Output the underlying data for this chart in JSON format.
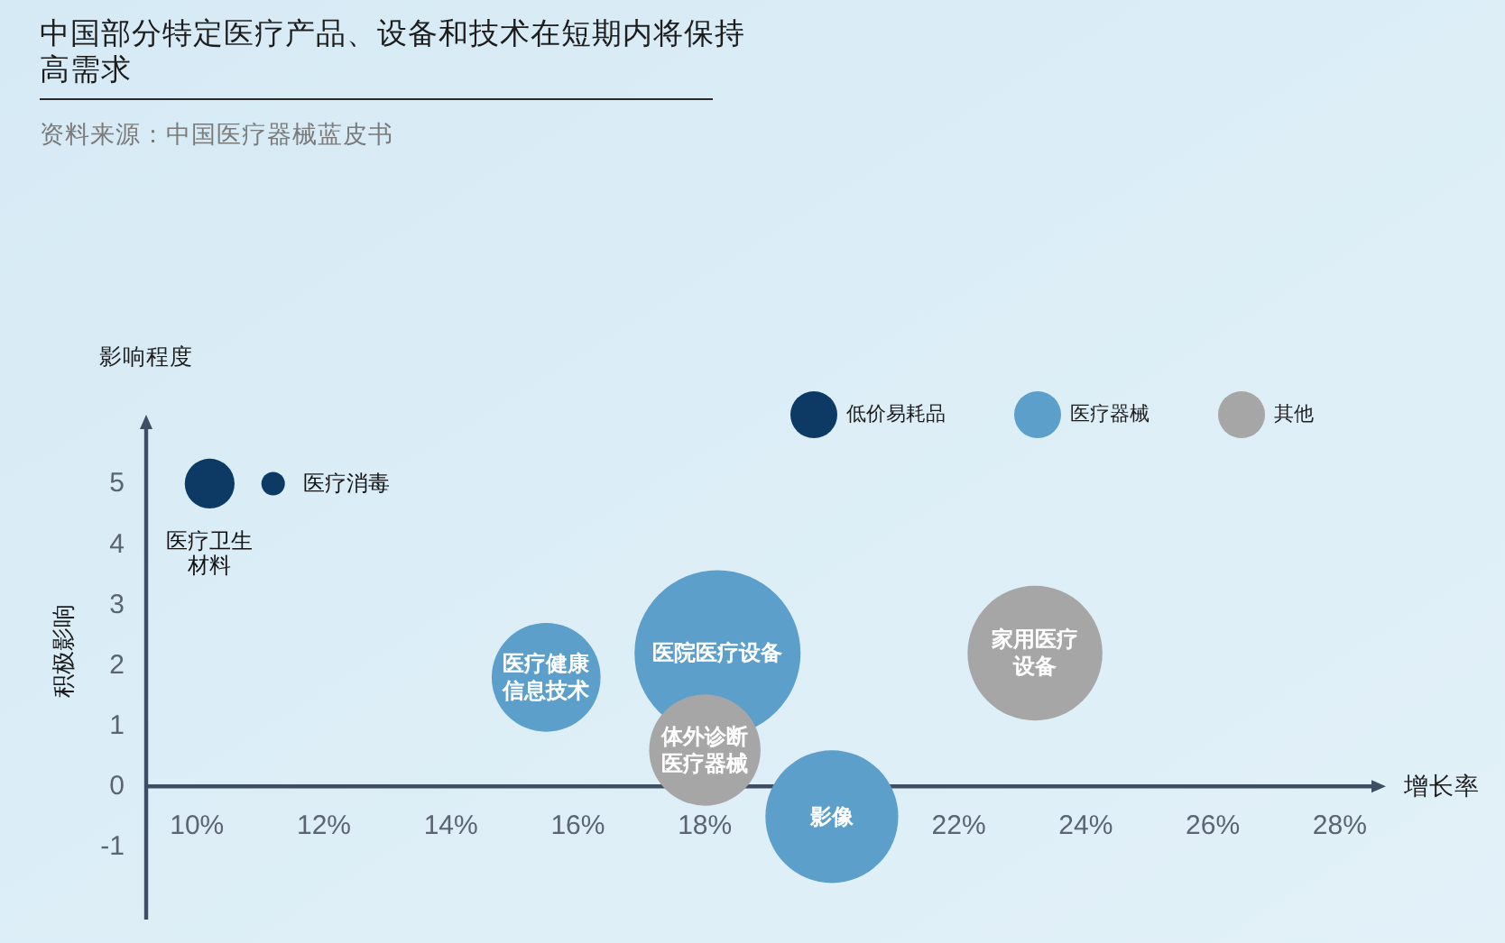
{
  "chart_data": {
    "type": "bubble",
    "title": "中国部分特定医疗产品、设备和技术在短期内将保持高需求",
    "xlabel": "增长率",
    "ylabel": "影响程度",
    "annotations": [
      {
        "text": "医疗卫生材料",
        "x": 10.2,
        "y": 5
      },
      {
        "text": "医疗消毒",
        "x": 11.2,
        "y": 5
      },
      {
        "text": "医疗健康信息技术",
        "x": 15.5,
        "y": 1.8
      },
      {
        "text": "医院医疗设备",
        "x": 18.2,
        "y": 2.2
      },
      {
        "text": "影像",
        "x": 20.0,
        "y": -0.5
      },
      {
        "text": "体外诊断医疗器械",
        "x": 18.0,
        "y": 0.6
      },
      {
        "text": "家用医疗设备",
        "x": 23.2,
        "y": 2.2
      },
      "积极影响",
      "资料来源：中国医疗器械蓝皮书"
    ],
    "xlim": [
      9.2,
      28.5
    ],
    "xticks": [
      {
        "value": 10,
        "label": "10%"
      },
      {
        "value": 12,
        "label": "12%"
      },
      {
        "value": 14,
        "label": "14%"
      },
      {
        "value": 16,
        "label": "16%"
      },
      {
        "value": 18,
        "label": "18%"
      },
      {
        "value": 22,
        "label": "22%"
      },
      {
        "value": 24,
        "label": "24%"
      },
      {
        "value": 26,
        "label": "26%"
      },
      {
        "value": 28,
        "label": "28%"
      }
    ],
    "ylim": [
      -2.2,
      5.9
    ],
    "yticks": [
      -1,
      0,
      1,
      2,
      3,
      4,
      5
    ],
    "legend": "top right",
    "series": [
      {
        "name": "低价易耗品",
        "color": "#0c3a64",
        "x": [
          10.2,
          11.2
        ],
        "values": [
          5,
          5
        ],
        "sizes": [
          0.09,
          0.02
        ]
      },
      {
        "name": "医疗器械",
        "color": "#5b9fca",
        "x": [
          15.5,
          18.2,
          20.0
        ],
        "values": [
          1.8,
          2.2,
          -0.5
        ],
        "sizes": [
          0.43,
          1,
          0.64
        ]
      },
      {
        "name": "其他",
        "color": "#a6a6a6",
        "x": [
          18.0,
          23.2
        ],
        "values": [
          0.6,
          2.2
        ],
        "sizes": [
          0.45,
          0.66
        ]
      }
    ]
  }
}
